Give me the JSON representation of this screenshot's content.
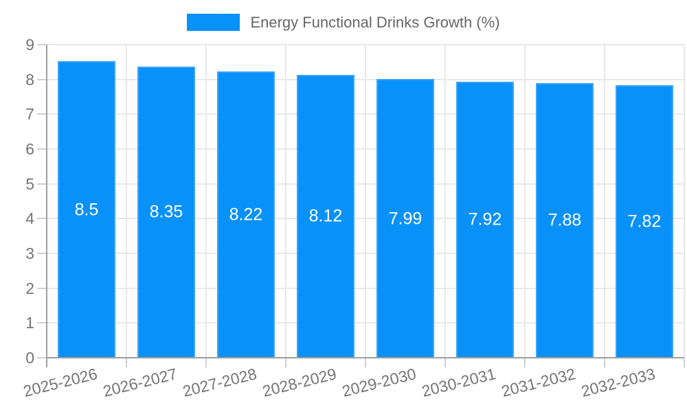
{
  "legend": {
    "label": "Energy Functional Drinks Growth (%)"
  },
  "chart_data": {
    "type": "bar",
    "title": "Energy Functional Drinks Growth (%)",
    "categories": [
      "2025-2026",
      "2026-2027",
      "2027-2028",
      "2028-2029",
      "2029-2030",
      "2030-2031",
      "2031-2032",
      "2032-2033"
    ],
    "values": [
      8.5,
      8.35,
      8.22,
      8.12,
      7.99,
      7.92,
      7.88,
      7.82
    ],
    "value_labels": [
      "8.5",
      "8.35",
      "8.22",
      "8.12",
      "7.99",
      "7.92",
      "7.88",
      "7.82"
    ],
    "xlabel": "",
    "ylabel": "",
    "ylim": [
      0,
      9
    ],
    "y_ticks": [
      0,
      1,
      2,
      3,
      4,
      5,
      6,
      7,
      8,
      9
    ],
    "grid": true,
    "legend_position": "top",
    "x_tick_rotation_deg": -14,
    "colors": {
      "bar_fill": "#0991fa",
      "bar_border": "#3da4fb",
      "value_label": "#ffffff",
      "gridline": "#e8e8e8",
      "tick_mark": "#cfcfcf",
      "axis_line": "#9e9e9e",
      "tick_label": "#757575",
      "legend_text": "#666666"
    }
  }
}
